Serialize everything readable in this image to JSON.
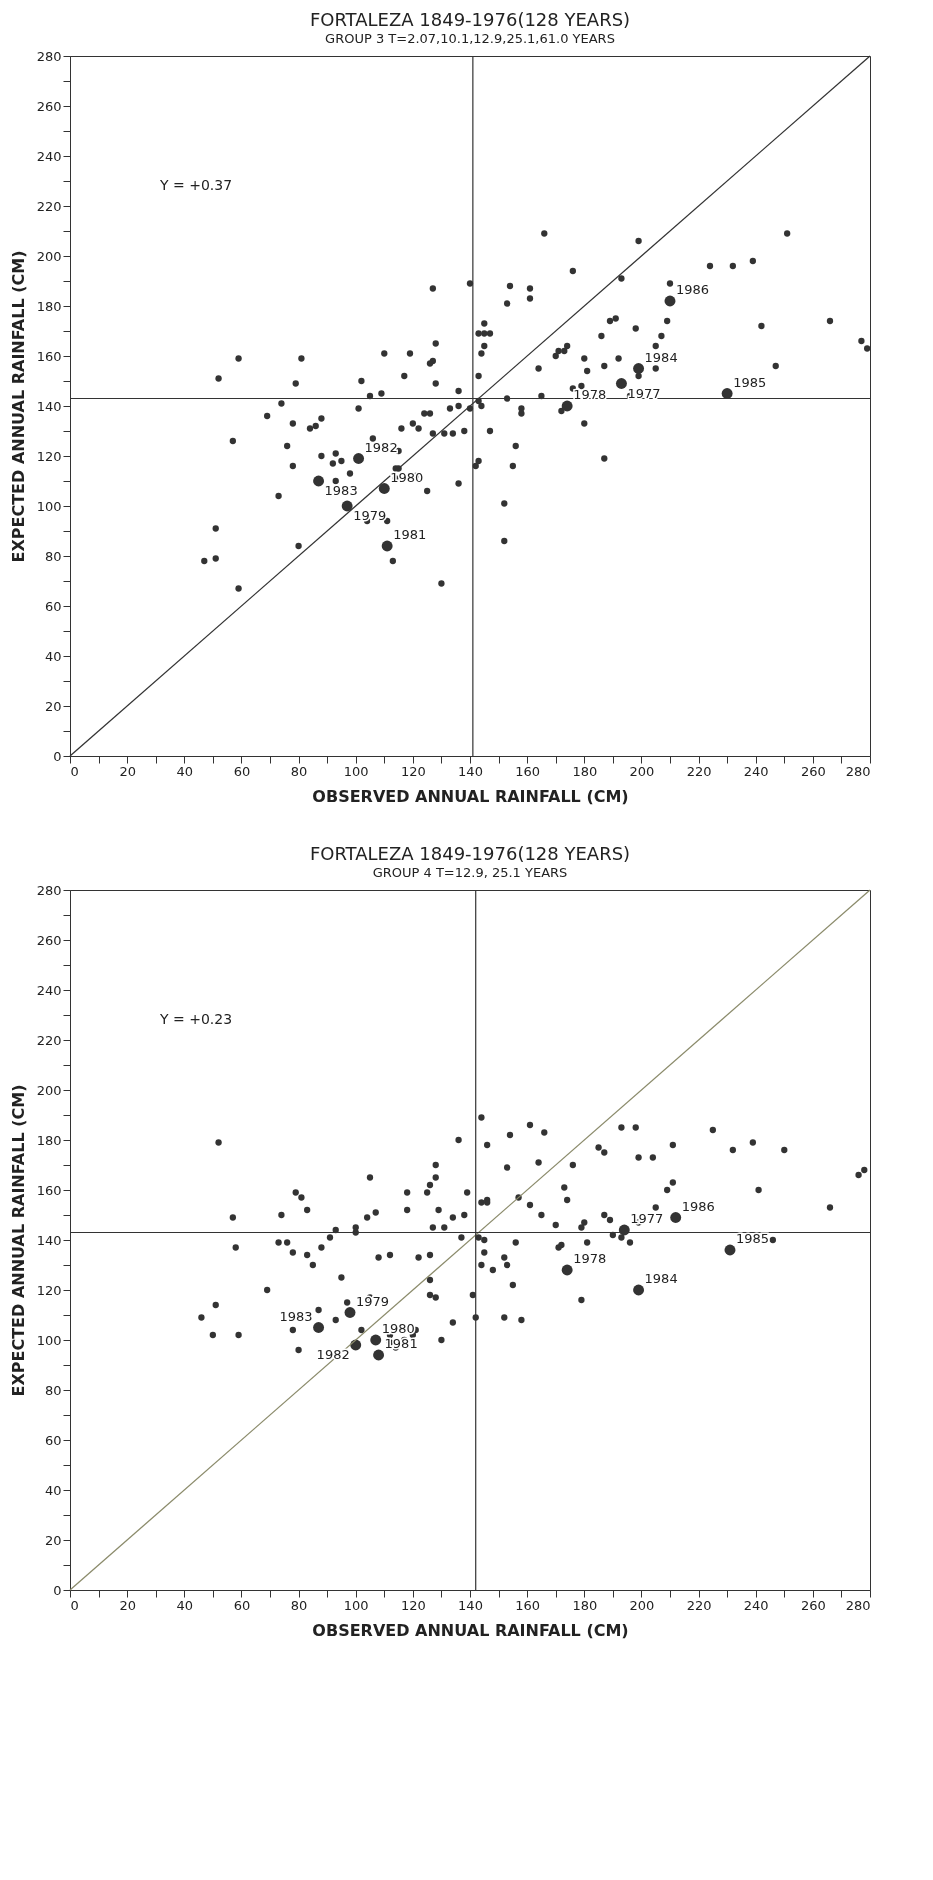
{
  "chart_data": [
    {
      "type": "scatter",
      "title": "FORTALEZA 1849-1976(128 YEARS)",
      "subtitle": "GROUP 3 T=2.07,10.1,12.9,25.1,61.0 YEARS",
      "xlabel": "OBSERVED ANNUAL RAINFALL (CM)",
      "ylabel": "EXPECTED ANNUAL RAINFALL (CM)",
      "xlim": [
        0,
        280
      ],
      "ylim": [
        0,
        280
      ],
      "xticks": [
        0,
        {
          "value": 10,
          "label": null
        },
        20,
        {
          "value": 30,
          "label": null
        },
        40,
        {
          "value": 50,
          "label": null
        },
        60,
        {
          "value": 70,
          "label": null
        },
        80,
        {
          "value": 90,
          "label": null
        },
        100,
        {
          "value": 110,
          "label": null
        },
        120,
        {
          "value": 130,
          "label": null
        },
        140,
        {
          "value": 150,
          "label": null
        },
        160,
        {
          "value": 170,
          "label": null
        },
        180,
        {
          "value": 190,
          "label": null
        },
        200,
        {
          "value": 210,
          "label": null
        },
        220,
        {
          "value": 230,
          "label": null
        },
        240,
        {
          "value": 250,
          "label": null
        },
        260,
        {
          "value": 270,
          "label": null
        },
        280
      ],
      "yticks": [
        0,
        {
          "value": 10,
          "label": null
        },
        20,
        {
          "value": 30,
          "label": null
        },
        40,
        {
          "value": 50,
          "label": null
        },
        60,
        {
          "value": 70,
          "label": null
        },
        80,
        {
          "value": 90,
          "label": null
        },
        100,
        {
          "value": 110,
          "label": null
        },
        120,
        {
          "value": 130,
          "label": null
        },
        140,
        {
          "value": 150,
          "label": null
        },
        160,
        {
          "value": 170,
          "label": null
        },
        180,
        {
          "value": 190,
          "label": null
        },
        200,
        {
          "value": 210,
          "label": null
        },
        220,
        {
          "value": 230,
          "label": null
        },
        240,
        {
          "value": 250,
          "label": null
        },
        260,
        {
          "value": 270,
          "label": null
        },
        280
      ],
      "grid": false,
      "series": [
        {
          "marker": "circle",
          "color": "#333333",
          "x": [
            279,
            277,
            266,
            251,
            247,
            242,
            239,
            232,
            224,
            210,
            209,
            207,
            205,
            205,
            199,
            199,
            193,
            198,
            191,
            189,
            192,
            196,
            186,
            187,
            187,
            180,
            181,
            179,
            180,
            176,
            176,
            172,
            174,
            173,
            171,
            170,
            166,
            165,
            164,
            161,
            161,
            158,
            158,
            156,
            155,
            154,
            153,
            152,
            152,
            153,
            147,
            145,
            147,
            145,
            143,
            145,
            144,
            143,
            144,
            143,
            143,
            142,
            140,
            140,
            136,
            136,
            138,
            136,
            133,
            134,
            131,
            130,
            127,
            128,
            127,
            126,
            128,
            126,
            124,
            127,
            125,
            120,
            122,
            121,
            119,
            117,
            116,
            114,
            110,
            109,
            105,
            102,
            101,
            115,
            115,
            114,
            113,
            111,
            104,
            106,
            98,
            95,
            92,
            93,
            88,
            93,
            88,
            86,
            84,
            81,
            79,
            78,
            78,
            76,
            80,
            74,
            73,
            69,
            59,
            57,
            59,
            52,
            51,
            51,
            47
          ],
          "values": [
            163,
            166,
            174,
            209,
            156,
            172,
            198,
            196,
            196,
            189,
            174,
            168,
            164,
            155,
            152,
            206,
            191,
            171,
            175,
            174,
            159,
            144,
            168,
            156,
            119,
            159,
            154,
            148,
            133,
            194,
            147,
            138,
            164,
            162,
            162,
            160,
            209,
            144,
            155,
            187,
            183,
            139,
            137,
            124,
            116,
            188,
            181,
            101,
            86,
            143,
            130,
            173,
            169,
            169,
            169,
            164,
            161,
            152,
            140,
            142,
            118,
            116,
            189,
            139,
            140,
            146,
            130,
            109,
            139,
            129,
            129,
            69,
            187,
            165,
            158,
            157,
            149,
            137,
            137,
            129,
            106,
            133,
            131,
            112,
            161,
            152,
            131,
            115,
            161,
            145,
            144,
            150,
            139,
            122,
            115,
            111,
            78,
            94,
            94,
            127,
            113,
            118,
            117,
            121,
            120,
            110,
            135,
            132,
            131,
            159,
            149,
            133,
            116,
            124,
            84,
            141,
            104,
            136,
            159,
            126,
            67,
            151,
            91,
            79,
            78
          ]
        },
        {
          "marker": "circle",
          "color": "#333333",
          "x": [
            230,
            210,
            199,
            193,
            174,
            110,
            111,
            101,
            97,
            87
          ],
          "values": [
            145,
            182,
            155,
            149,
            140,
            107,
            84,
            119,
            100,
            110
          ]
        },
        {
          "type": "line",
          "color": "#333333",
          "x": [
            0,
            280
          ],
          "values": [
            0,
            280
          ]
        }
      ],
      "ref_lines": [
        {
          "axis": "x",
          "value": 141,
          "color": "#333333"
        },
        {
          "axis": "y",
          "value": 143,
          "color": "#333333"
        }
      ],
      "annotations": [
        "Y = +0.37",
        {
          "text": "1985",
          "x": 230,
          "y": 145
        },
        {
          "text": "1986",
          "x": 210,
          "y": 182
        },
        {
          "text": "1984",
          "x": 199,
          "y": 155
        },
        {
          "text": "1977",
          "x": 193,
          "y": 149
        },
        {
          "text": "1978",
          "x": 174,
          "y": 140
        },
        {
          "text": "1980",
          "x": 110,
          "y": 107
        },
        {
          "text": "1981",
          "x": 111,
          "y": 84
        },
        {
          "text": "1982",
          "x": 101,
          "y": 119
        },
        {
          "text": "1979",
          "x": 97,
          "y": 100
        },
        {
          "text": "1983",
          "x": 87,
          "y": 110
        }
      ]
    },
    {
      "type": "scatter",
      "title": "FORTALEZA 1849-1976(128 YEARS)",
      "subtitle": "GROUP 4 T=12.9, 25.1 YEARS",
      "xlabel": "OBSERVED ANNUAL RAINFALL (CM)",
      "ylabel": "EXPECTED ANNUAL RAINFALL (CM)",
      "xlim": [
        0,
        280
      ],
      "ylim": [
        0,
        280
      ],
      "xticks": [
        0,
        {
          "value": 10,
          "label": null
        },
        20,
        {
          "value": 30,
          "label": null
        },
        40,
        {
          "value": 50,
          "label": null
        },
        60,
        {
          "value": 70,
          "label": null
        },
        80,
        {
          "value": 90,
          "label": null
        },
        100,
        {
          "value": 110,
          "label": null
        },
        120,
        {
          "value": 130,
          "label": null
        },
        140,
        {
          "value": 150,
          "label": null
        },
        160,
        {
          "value": 170,
          "label": null
        },
        180,
        {
          "value": 190,
          "label": null
        },
        200,
        {
          "value": 210,
          "label": null
        },
        220,
        {
          "value": 230,
          "label": null
        },
        240,
        {
          "value": 250,
          "label": null
        },
        260,
        {
          "value": 270,
          "label": null
        },
        280
      ],
      "yticks": [
        0,
        {
          "value": 10,
          "label": null
        },
        20,
        {
          "value": 30,
          "label": null
        },
        40,
        {
          "value": 50,
          "label": null
        },
        60,
        {
          "value": 70,
          "label": null
        },
        80,
        {
          "value": 90,
          "label": null
        },
        100,
        {
          "value": 110,
          "label": null
        },
        120,
        {
          "value": 130,
          "label": null
        },
        140,
        {
          "value": 150,
          "label": null
        },
        160,
        {
          "value": 170,
          "label": null
        },
        180,
        {
          "value": 190,
          "label": null
        },
        200,
        {
          "value": 210,
          "label": null
        },
        220,
        {
          "value": 230,
          "label": null
        },
        240,
        {
          "value": 250,
          "label": null
        },
        260,
        {
          "value": 270,
          "label": null
        },
        280
      ],
      "grid": false,
      "series": [
        {
          "marker": "circle",
          "color": "#333333",
          "x": [
            278,
            276,
            266,
            250,
            246,
            241,
            239,
            232,
            225,
            211,
            211,
            209,
            205,
            204,
            199,
            199,
            198,
            196,
            193,
            193,
            187,
            189,
            190,
            187,
            185,
            181,
            180,
            179,
            179,
            176,
            173,
            174,
            172,
            171,
            170,
            166,
            165,
            161,
            164,
            161,
            158,
            157,
            154,
            153,
            156,
            155,
            152,
            153,
            152,
            148,
            146,
            146,
            146,
            144,
            145,
            145,
            143,
            144,
            144,
            141,
            142,
            139,
            137,
            138,
            136,
            134,
            134,
            131,
            127,
            130,
            129,
            128,
            128,
            126,
            125,
            126,
            126,
            126,
            128,
            122,
            118,
            118,
            121,
            120,
            117,
            112,
            112,
            114,
            112,
            108,
            107,
            104,
            105,
            105,
            102,
            100,
            100,
            97,
            95,
            93,
            93,
            91,
            88,
            83,
            81,
            79,
            83,
            85,
            87,
            80,
            78,
            78,
            76,
            73,
            74,
            69,
            58,
            59,
            57,
            52,
            51,
            50,
            46
          ],
          "values": [
            168,
            166,
            153,
            176,
            140,
            160,
            179,
            176,
            184,
            178,
            163,
            160,
            153,
            173,
            173,
            147,
            185,
            139,
            185,
            141,
            150,
            148,
            142,
            175,
            177,
            139,
            147,
            145,
            116,
            170,
            161,
            156,
            138,
            137,
            146,
            183,
            150,
            186,
            171,
            154,
            108,
            157,
            182,
            169,
            139,
            122,
            133,
            130,
            109,
            128,
            178,
            156,
            155,
            155,
            135,
            140,
            141,
            130,
            189,
            118,
            109,
            159,
            141,
            150,
            180,
            149,
            107,
            145,
            145,
            100,
            152,
            170,
            165,
            162,
            159,
            134,
            124,
            118,
            117,
            133,
            159,
            152,
            104,
            102,
            100,
            102,
            99,
            97,
            134,
            133,
            151,
            149,
            165,
            117,
            104,
            145,
            143,
            115,
            125,
            144,
            108,
            141,
            137,
            152,
            157,
            159,
            134,
            130,
            112,
            96,
            104,
            135,
            139,
            139,
            150,
            120,
            137,
            102,
            149,
            179,
            114,
            102,
            109
          ]
        },
        {
          "marker": "circle",
          "color": "#333333",
          "x": [
            231,
            212,
            199,
            194,
            174,
            107,
            108,
            100,
            98,
            87
          ],
          "values": [
            136,
            149,
            120,
            144,
            128,
            100,
            94,
            98,
            111,
            105
          ]
        },
        {
          "type": "line",
          "color": "#8b8b6b",
          "x": [
            0,
            280
          ],
          "values": [
            0,
            280
          ]
        }
      ],
      "ref_lines": [
        {
          "axis": "x",
          "value": 142,
          "color": "#333333"
        },
        {
          "axis": "y",
          "value": 143,
          "color": "#333333"
        }
      ],
      "annotations": [
        "Y = +0.23",
        {
          "text": "1985",
          "x": 231,
          "y": 136
        },
        {
          "text": "1986",
          "x": 212,
          "y": 149
        },
        {
          "text": "1984",
          "x": 199,
          "y": 120
        },
        {
          "text": "1977",
          "x": 194,
          "y": 144
        },
        {
          "text": "1978",
          "x": 174,
          "y": 128
        },
        {
          "text": "1980",
          "x": 107,
          "y": 100
        },
        {
          "text": "1981",
          "x": 108,
          "y": 94
        },
        {
          "text": "1982",
          "x": 100,
          "y": 98
        },
        {
          "text": "1979",
          "x": 98,
          "y": 111
        },
        {
          "text": "1983",
          "x": 87,
          "y": 105
        }
      ]
    }
  ]
}
